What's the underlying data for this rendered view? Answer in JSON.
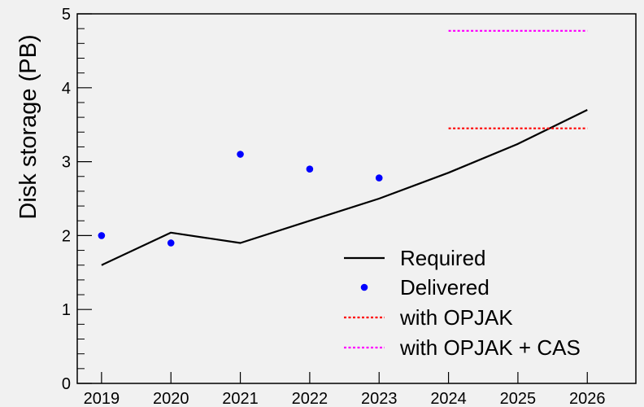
{
  "chart_data": {
    "type": "line",
    "title": "",
    "xlabel": "",
    "ylabel": "Disk storage (PB)",
    "x": [
      2019,
      2020,
      2021,
      2022,
      2023,
      2024,
      2025,
      2026
    ],
    "x_tick_labels": [
      "2019",
      "2020",
      "2021",
      "2022",
      "2023",
      "2024",
      "2025",
      "2026"
    ],
    "xlim": [
      2018.65,
      2026.7
    ],
    "ylim": [
      0,
      5
    ],
    "y_tick_labels": [
      "0",
      "1",
      "2",
      "3",
      "4",
      "5"
    ],
    "grid": false,
    "legend_position": "bottom-right",
    "series": [
      {
        "name": "Required",
        "style": "solid-line",
        "color": "#000000",
        "points": [
          [
            2019,
            1.6
          ],
          [
            2020,
            2.04
          ],
          [
            2021,
            1.9
          ],
          [
            2022,
            2.2
          ],
          [
            2023,
            2.5
          ],
          [
            2024,
            2.85
          ],
          [
            2025,
            3.24
          ],
          [
            2026,
            3.7
          ]
        ]
      },
      {
        "name": "Delivered",
        "style": "markers",
        "color": "#0000ff",
        "points": [
          [
            2019,
            2.0
          ],
          [
            2020,
            1.9
          ],
          [
            2021,
            3.1
          ],
          [
            2022,
            2.9
          ],
          [
            2023,
            2.78
          ]
        ]
      },
      {
        "name": "with OPJAK",
        "style": "dotted-line",
        "color": "#ff0000",
        "points": [
          [
            2024,
            3.45
          ],
          [
            2026,
            3.45
          ]
        ]
      },
      {
        "name": "with OPJAK + CAS",
        "style": "dotted-line",
        "color": "#ff00ff",
        "points": [
          [
            2024,
            4.77
          ],
          [
            2026,
            4.77
          ]
        ]
      }
    ]
  }
}
